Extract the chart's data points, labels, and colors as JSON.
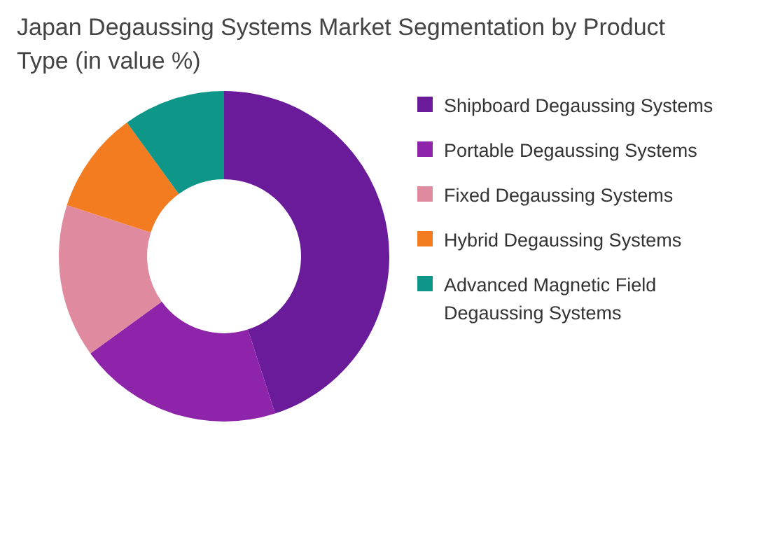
{
  "chart_data": {
    "type": "donut",
    "title": "Japan Degaussing Systems Market Segmentation by Product Type (in value %)",
    "categories": [
      "Shipboard Degaussing Systems",
      "Portable Degaussing Systems",
      "Fixed Degaussing Systems",
      "Hybrid Degaussing Systems",
      "Advanced Magnetic Field Degaussing Systems"
    ],
    "values": [
      45,
      20,
      15,
      10,
      10
    ],
    "colors": [
      "#6a1b9a",
      "#8e24aa",
      "#e08a9f",
      "#f47c20",
      "#0e9688"
    ],
    "legend": "right"
  }
}
